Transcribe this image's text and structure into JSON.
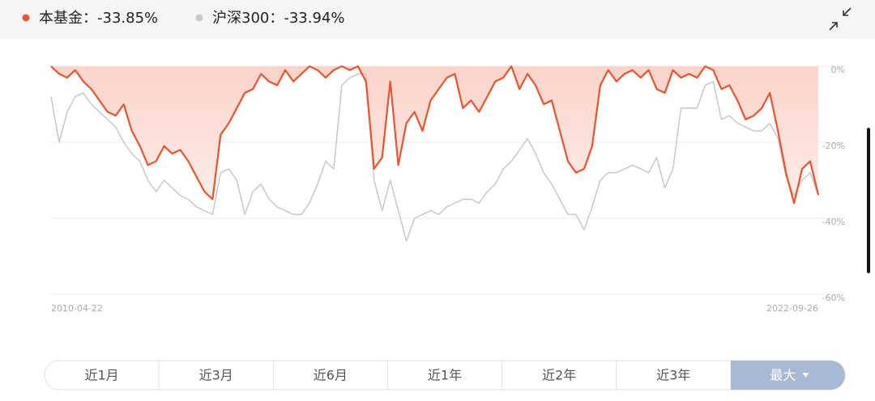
{
  "chart_data": {
    "type": "line",
    "series": [
      {
        "name": "本基金：-33.85%",
        "color": "#e8542f",
        "fill": true,
        "values": [
          0,
          -2,
          -3,
          -1,
          -4,
          -6,
          -9,
          -12,
          -13,
          -10,
          -17,
          -21,
          -26,
          -25,
          -21,
          -23,
          -22,
          -25,
          -29,
          -33,
          -35,
          -18,
          -15,
          -11,
          -7,
          -6,
          -2,
          -4,
          -5,
          -1,
          -4,
          -2,
          0,
          -1,
          -3,
          -1,
          0,
          -1,
          0,
          -4,
          -27,
          -24,
          -4,
          -26,
          -15,
          -12,
          -17,
          -9,
          -6,
          -3,
          -2,
          -11,
          -9,
          -12,
          -8,
          -4,
          -3,
          0,
          -6,
          -2,
          -5,
          -10,
          -9,
          -17,
          -25,
          -28,
          -27,
          -21,
          -5,
          -1,
          -4,
          -2,
          -1,
          -3,
          -1,
          -6,
          -7,
          -1,
          -3,
          -2,
          -3,
          0,
          -1,
          -6,
          -5,
          -9,
          -14,
          -13,
          -11,
          -7,
          -17,
          -28,
          -36,
          -27,
          -25,
          -33.85
        ]
      },
      {
        "name": "沪深300：-33.94%",
        "color": "#c8c8c8",
        "fill": false,
        "values": [
          -8,
          -20,
          -12,
          -8,
          -7,
          -10,
          -12,
          -14,
          -16,
          -20,
          -23,
          -25,
          -30,
          -33,
          -30,
          -32,
          -34,
          -35,
          -37,
          -38,
          -39,
          -28,
          -27,
          -30,
          -39,
          -33,
          -31,
          -35,
          -37,
          -38,
          -39,
          -39,
          -36,
          -31,
          -25,
          -27,
          -5,
          -3,
          -2,
          -2,
          -30,
          -38,
          -30,
          -38,
          -46,
          -40,
          -39,
          -38,
          -39,
          -37,
          -36,
          -35,
          -35,
          -36,
          -33,
          -31,
          -27,
          -25,
          -22,
          -19,
          -23,
          -28,
          -31,
          -35,
          -39,
          -39,
          -43,
          -37,
          -30,
          -28,
          -28,
          -27,
          -26,
          -27,
          -28,
          -24,
          -32,
          -27,
          -11,
          -11,
          -11,
          -5,
          -4,
          -14,
          -13,
          -15,
          -16,
          -17,
          -17,
          -15,
          -19,
          -29,
          -34,
          -30,
          -28,
          -33.94
        ]
      }
    ],
    "categories": [
      "2010-04-22",
      null,
      null,
      null,
      null,
      null,
      null,
      null,
      null,
      null,
      null,
      null,
      null,
      null,
      null,
      null,
      null,
      null,
      null,
      null,
      null,
      null,
      null,
      null,
      null,
      null,
      null,
      null,
      null,
      null,
      null,
      null,
      null,
      null,
      null,
      null,
      null,
      null,
      null,
      null,
      null,
      null,
      null,
      null,
      null,
      null,
      null,
      null,
      null,
      null,
      null,
      null,
      null,
      null,
      null,
      null,
      null,
      null,
      null,
      null,
      null,
      null,
      null,
      null,
      null,
      null,
      null,
      null,
      null,
      null,
      null,
      null,
      null,
      null,
      null,
      null,
      null,
      null,
      null,
      null,
      null,
      null,
      null,
      null,
      null,
      null,
      null,
      null,
      null,
      null,
      null,
      null,
      null,
      null,
      null,
      "2022-09-26"
    ],
    "ylim": [
      -60,
      0
    ],
    "yticks": [
      {
        "value": 0,
        "label": "0%"
      },
      {
        "value": -20,
        "label": "-20%"
      },
      {
        "value": -40,
        "label": "-40%"
      },
      {
        "value": -60,
        "label": "-60%"
      }
    ],
    "grid": true
  },
  "range_buttons": [
    "近1月",
    "近3月",
    "近6月",
    "近1年",
    "近2年",
    "近3年",
    "最大"
  ]
}
